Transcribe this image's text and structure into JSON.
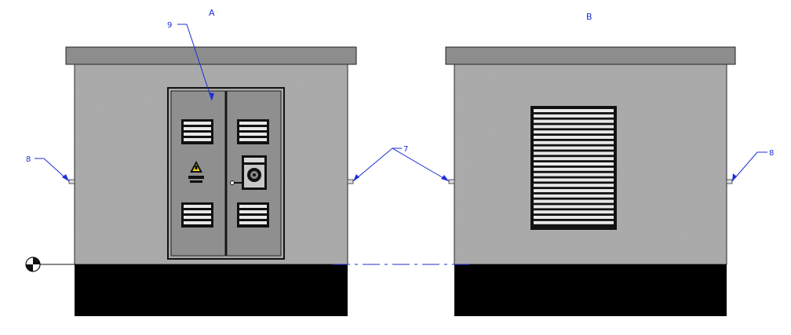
{
  "views": {
    "front": {
      "title": "A"
    },
    "back": {
      "title": "B"
    }
  },
  "callouts": {
    "door": "9",
    "handle_left": "8",
    "handle_middle": "7",
    "handle_right": "8"
  },
  "colors": {
    "roof": "#8d8d8d",
    "wall": "#a9a9a9",
    "door": "#8f8f8f",
    "base": "#000000",
    "outline": "#222222",
    "leader": "#1c2fd6",
    "vent_slat": "#e8e8e8"
  },
  "icons": {
    "warning": "high-voltage-warning-icon",
    "meter": "electric-meter-icon",
    "datum": "datum-target-icon"
  }
}
